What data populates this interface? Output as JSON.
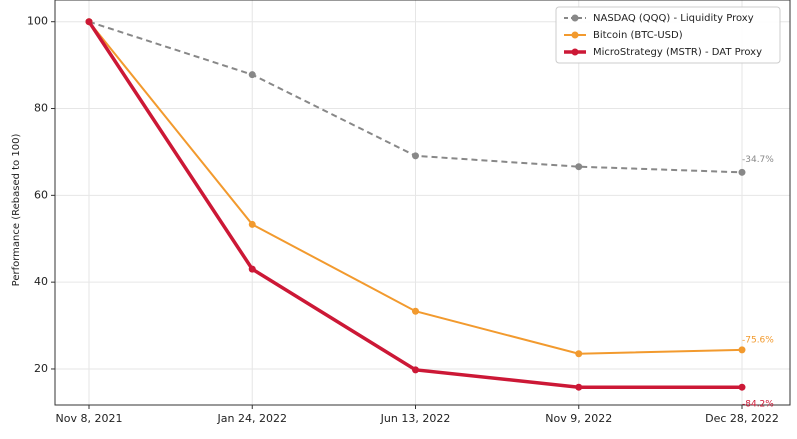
{
  "chart_data": {
    "type": "line",
    "ylabel": "Performance (Rebased to 100)",
    "categories": [
      "Nov 8, 2021",
      "Jan 24, 2022",
      "Jun 13, 2022",
      "Nov 9, 2022",
      "Dec 28, 2022"
    ],
    "series": [
      {
        "name": "NASDAQ (QQQ) - Liquidity Proxy",
        "color": "#888888",
        "dash": true,
        "width": 2,
        "values": [
          100,
          87.8,
          69.1,
          66.6,
          65.3
        ],
        "end_label": "-34.7%"
      },
      {
        "name": "Bitcoin (BTC-USD)",
        "color": "#f29a2e",
        "dash": false,
        "width": 2,
        "values": [
          100,
          53.3,
          33.3,
          23.5,
          24.4
        ],
        "end_label": "-75.6%"
      },
      {
        "name": "MicroStrategy (MSTR) - DAT Proxy",
        "color": "#cc1836",
        "dash": false,
        "width": 3.5,
        "values": [
          100,
          43.0,
          19.8,
          15.8,
          15.8
        ],
        "end_label": "-84.2%"
      }
    ],
    "ylim": [
      11.7,
      105
    ],
    "yticks": [
      20,
      40,
      60,
      80,
      100
    ],
    "grid": true,
    "legend": "upper right"
  }
}
